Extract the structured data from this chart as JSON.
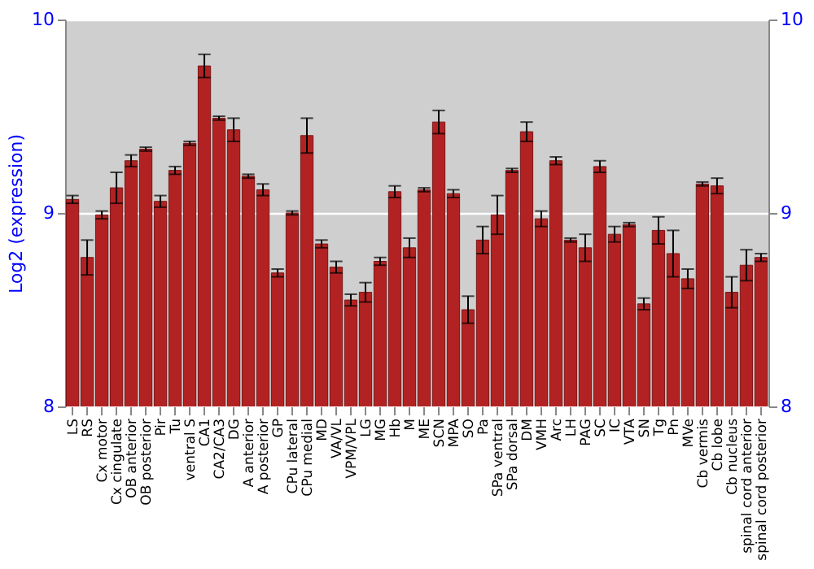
{
  "chart_data": {
    "type": "bar",
    "ylabel": "Log2 (expression)",
    "categories": [
      "LS",
      "RS",
      "Cx motor",
      "Cx cingulate",
      "OB anterior",
      "OB posterior",
      "Pir",
      "Tu",
      "ventral S",
      "CA1",
      "CA2/CA3",
      "DG",
      "A anterior",
      "A posterior",
      "GP",
      "CPu lateral",
      "CPu medial",
      "MD",
      "VA/VL",
      "VPM/VPL",
      "LG",
      "MG",
      "Hb",
      "M",
      "ME",
      "SCN",
      "MPA",
      "SO",
      "Pa",
      "SPa ventral",
      "SPa dorsal",
      "DM",
      "VMH",
      "Arc",
      "LH",
      "PAG",
      "SC",
      "IC",
      "VTA",
      "SN",
      "Tg",
      "Pn",
      "MVe",
      "Cb vermis",
      "Cb lobe",
      "Cb nucleus",
      "spinal cord anterior",
      "spinal cord posterior"
    ],
    "values": [
      9.07,
      8.77,
      8.99,
      9.13,
      9.27,
      9.33,
      9.06,
      9.22,
      9.36,
      9.76,
      9.49,
      9.43,
      9.19,
      9.12,
      8.69,
      9.0,
      9.4,
      8.84,
      8.72,
      8.55,
      8.59,
      8.75,
      9.11,
      8.82,
      9.12,
      9.47,
      9.1,
      8.5,
      8.86,
      8.99,
      9.22,
      9.42,
      8.97,
      9.27,
      8.86,
      8.82,
      9.24,
      8.89,
      8.94,
      8.53,
      8.91,
      8.79,
      8.66,
      9.15,
      9.14,
      8.59,
      8.73,
      8.77
    ],
    "errors": [
      0.02,
      0.09,
      0.02,
      0.08,
      0.03,
      0.01,
      0.03,
      0.02,
      0.01,
      0.06,
      0.01,
      0.06,
      0.01,
      0.03,
      0.02,
      0.01,
      0.09,
      0.02,
      0.03,
      0.03,
      0.05,
      0.02,
      0.03,
      0.05,
      0.01,
      0.06,
      0.02,
      0.07,
      0.07,
      0.1,
      0.01,
      0.05,
      0.04,
      0.02,
      0.01,
      0.07,
      0.03,
      0.04,
      0.01,
      0.03,
      0.07,
      0.12,
      0.05,
      0.01,
      0.04,
      0.08,
      0.08,
      0.02
    ],
    "color": "#b22222",
    "ylim": [
      8,
      10
    ],
    "yticks": [
      8,
      9,
      10
    ],
    "y2lim": [
      8,
      10
    ],
    "y2ticks": [
      8,
      9,
      10
    ],
    "grid": "y"
  }
}
